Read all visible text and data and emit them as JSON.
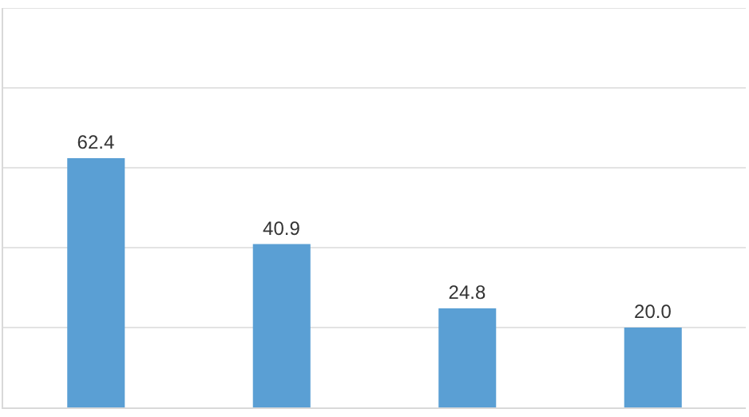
{
  "chart_data": {
    "type": "bar",
    "categories": [
      null,
      null,
      null,
      null
    ],
    "values": [
      62.4,
      40.9,
      24.8,
      20.0
    ],
    "value_labels": [
      "62.4",
      "40.9",
      "24.8",
      "20.0"
    ],
    "color": "#5a9fd4",
    "ylim": [
      0,
      100
    ],
    "yticks": [
      {
        "value": 0,
        "label": null
      },
      {
        "value": 20,
        "label": null
      },
      {
        "value": 40,
        "label": null
      },
      {
        "value": 60,
        "label": null
      },
      {
        "value": 80,
        "label": null
      },
      {
        "value": 100,
        "label": null
      }
    ],
    "grid": "y"
  }
}
